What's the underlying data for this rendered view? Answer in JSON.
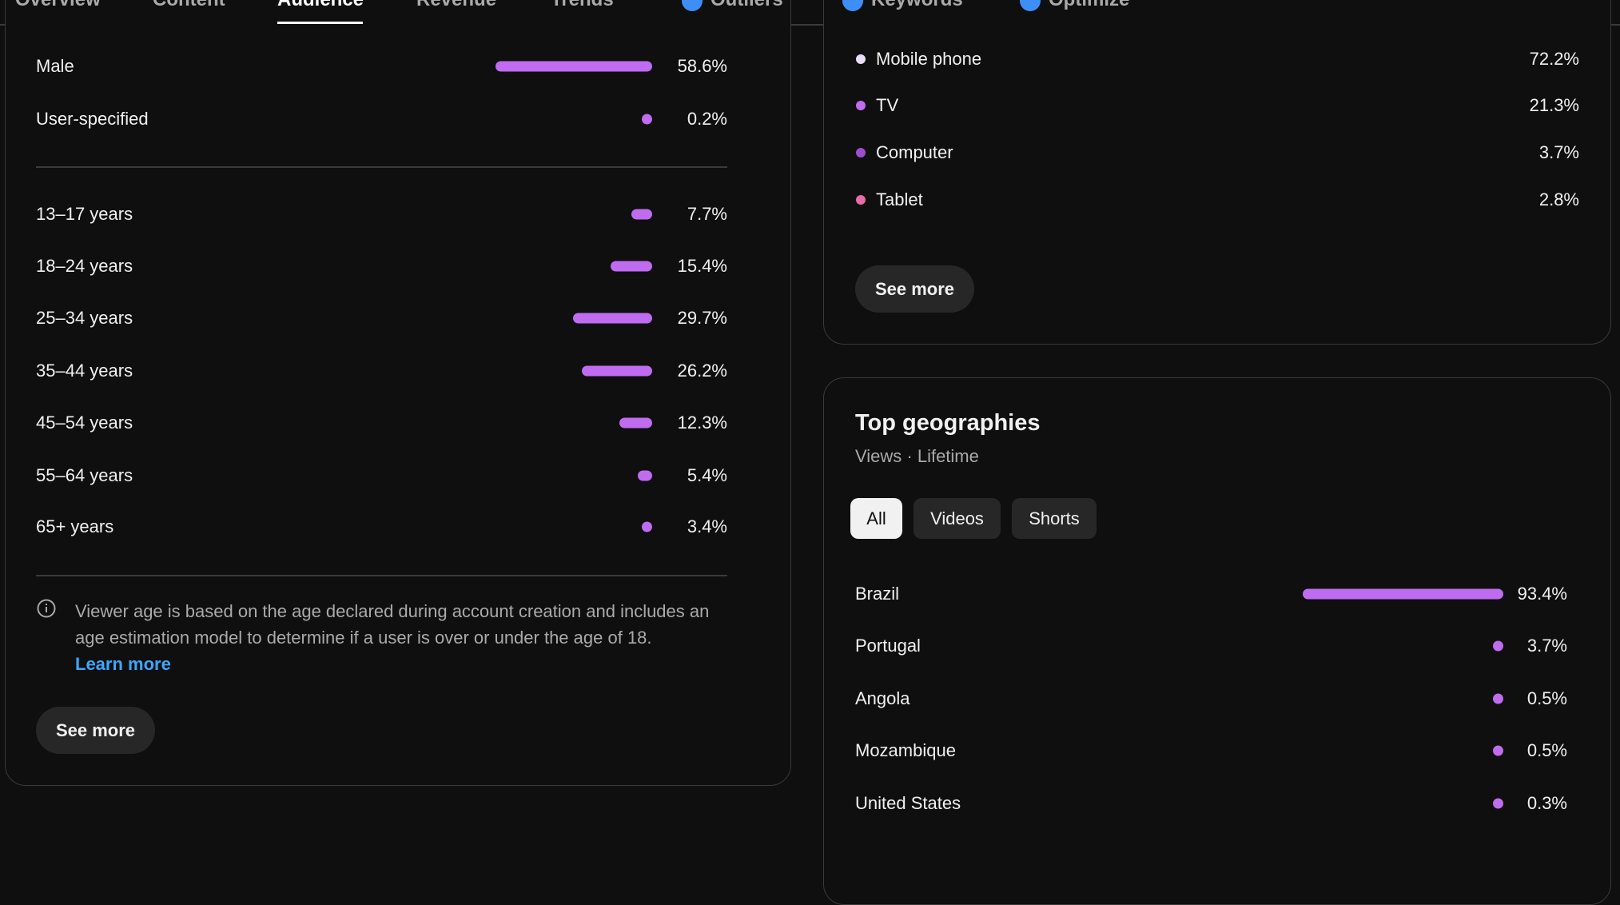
{
  "tabs": [
    "Overview",
    "Content",
    "Audience",
    "Revenue",
    "Trends",
    "Outliers",
    "Keywords",
    "Optimize"
  ],
  "active_tab": "Audience",
  "bar_color": "#c06cf0",
  "gender": [
    {
      "label": "Male",
      "value": 58.6,
      "value_label": "58.6%"
    },
    {
      "label": "User-specified",
      "value": 0.2,
      "value_label": "0.2%"
    }
  ],
  "age": [
    {
      "label": "13–17 years",
      "value": 7.7,
      "value_label": "7.7%"
    },
    {
      "label": "18–24 years",
      "value": 15.4,
      "value_label": "15.4%"
    },
    {
      "label": "25–34 years",
      "value": 29.7,
      "value_label": "29.7%"
    },
    {
      "label": "35–44 years",
      "value": 26.2,
      "value_label": "26.2%"
    },
    {
      "label": "45–54 years",
      "value": 12.3,
      "value_label": "12.3%"
    },
    {
      "label": "55–64 years",
      "value": 5.4,
      "value_label": "5.4%"
    },
    {
      "label": "65+ years",
      "value": 3.4,
      "value_label": "3.4%"
    }
  ],
  "age_note": {
    "text": "Viewer age is based on the age declared during account creation and includes an age estimation model to determine if a user is over or under the age of 18.",
    "link": "Learn more"
  },
  "age_button": "See more",
  "devices": {
    "rows": [
      {
        "label": "Mobile phone",
        "value": 72.2,
        "value_label": "72.2%",
        "color": "#e9ddf7"
      },
      {
        "label": "TV",
        "value": 21.3,
        "value_label": "21.3%",
        "color": "#c06cf0"
      },
      {
        "label": "Computer",
        "value": 3.7,
        "value_label": "3.7%",
        "color": "#9b4fd0"
      },
      {
        "label": "Tablet",
        "value": 2.8,
        "value_label": "2.8%",
        "color": "#e86aa6"
      }
    ],
    "button": "See more"
  },
  "geographies": {
    "title": "Top geographies",
    "subtitle": "Views · Lifetime",
    "filters": [
      "All",
      "Videos",
      "Shorts"
    ],
    "active_filter": "All",
    "rows": [
      {
        "label": "Brazil",
        "value": 93.4,
        "value_label": "93.4%"
      },
      {
        "label": "Portugal",
        "value": 3.7,
        "value_label": "3.7%"
      },
      {
        "label": "Angola",
        "value": 0.5,
        "value_label": "0.5%"
      },
      {
        "label": "Mozambique",
        "value": 0.5,
        "value_label": "0.5%"
      },
      {
        "label": "United States",
        "value": 0.3,
        "value_label": "0.3%"
      }
    ]
  }
}
